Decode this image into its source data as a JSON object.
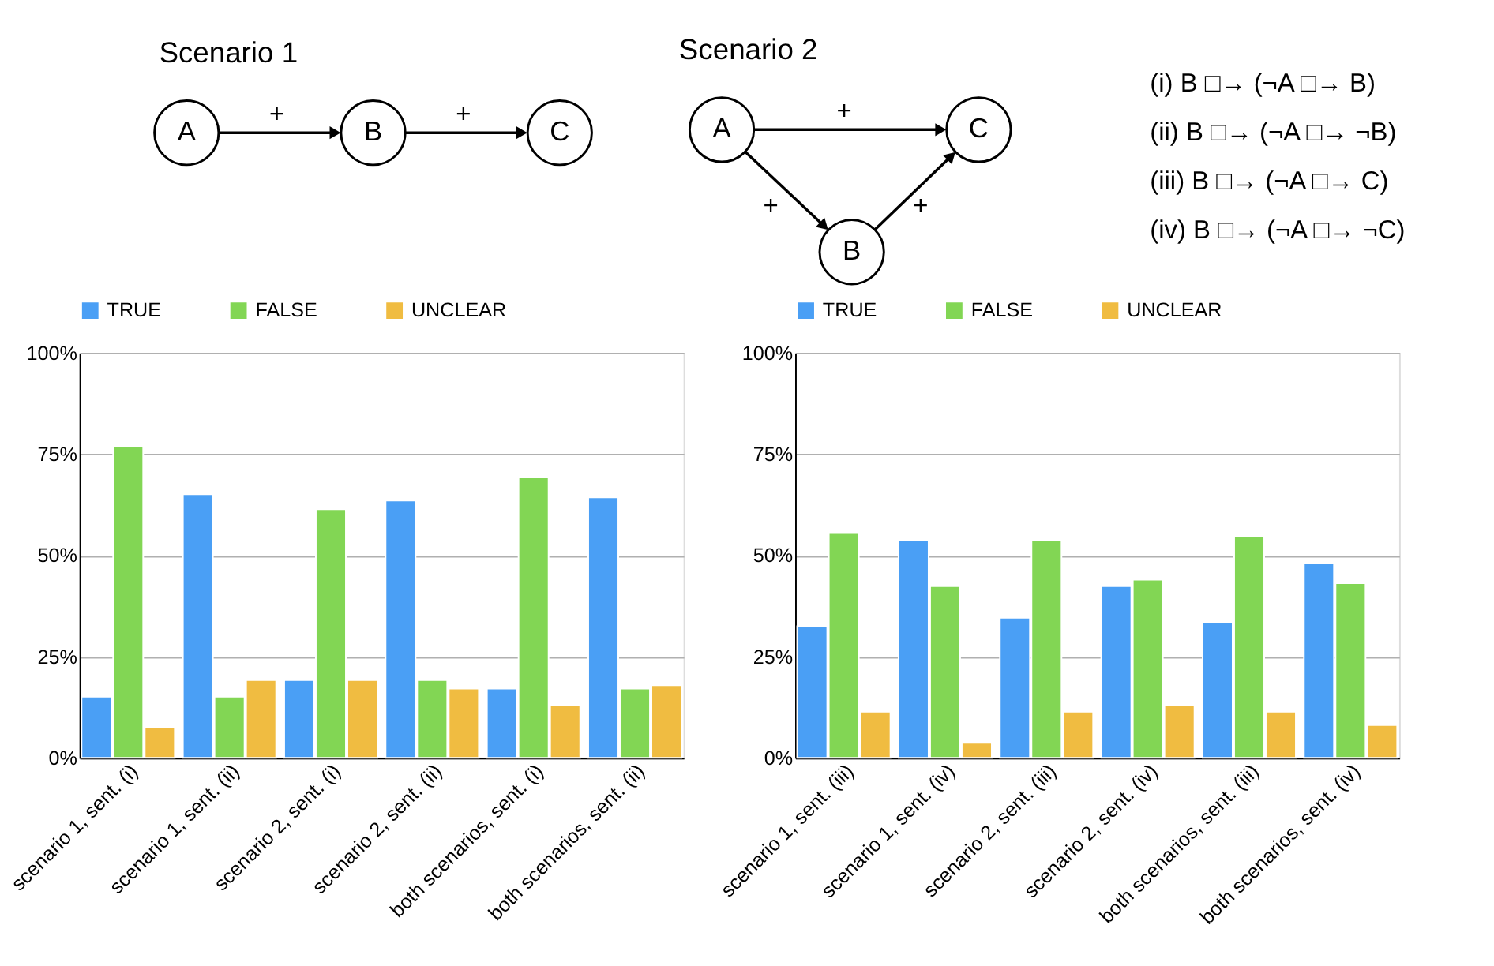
{
  "chart_data": [
    {
      "type": "other",
      "annotations": [
        "Scenario 1",
        "A",
        "B",
        "C",
        "+",
        "+",
        "Scenario 2",
        "A",
        "B",
        "C",
        "+",
        "+",
        "+",
        "(i)   B □→ (¬A □→ B)",
        "(ii)  B □→ (¬A □→ ¬B)",
        "(iii) B □→ (¬A □→ C)",
        "(iv) B □→ (¬A □→ ¬C)"
      ]
    },
    {
      "type": "bar",
      "categories": [
        "scenario 1, sent. (i)",
        "scenario 1, sent. (ii)",
        "scenario 2, sent. (i)",
        "scenario 2, sent. (ii)",
        "both scenarios, sent. (i)",
        "both scenarios, sent. (ii)"
      ],
      "series": [
        {
          "name": "TRUE",
          "color": "#4a9ff5",
          "values": [
            15.1,
            65.1,
            19.2,
            63.5,
            17.1,
            64.3
          ]
        },
        {
          "name": "FALSE",
          "color": "#82d654",
          "values": [
            76.9,
            15.1,
            61.4,
            19.2,
            69.2,
            17.1
          ]
        },
        {
          "name": "UNCLEAR",
          "color": "#f0bc41",
          "values": [
            7.5,
            19.2,
            19.2,
            17.1,
            13.1,
            17.9
          ]
        }
      ],
      "ylim": [
        0,
        100
      ],
      "yticks": [
        {
          "value": 0,
          "label": "0%"
        },
        {
          "value": 25,
          "label": "25%"
        },
        {
          "value": 50,
          "label": "50%"
        },
        {
          "value": 75,
          "label": "75%"
        },
        {
          "value": 100,
          "label": "100%"
        }
      ],
      "grid": "y",
      "legend": "top"
    },
    {
      "type": "bar",
      "categories": [
        "scenario 1, sent. (iii)",
        "scenario 1, sent. (iv)",
        "scenario 2, sent. (iii)",
        "scenario 2, sent. (iv)",
        "both scenarios, sent. (iii)",
        "both scenarios, sent. (iv)"
      ],
      "series": [
        {
          "name": "TRUE",
          "color": "#4a9ff5",
          "values": [
            32.5,
            53.8,
            34.6,
            42.4,
            33.5,
            48.1
          ]
        },
        {
          "name": "FALSE",
          "color": "#82d654",
          "values": [
            55.7,
            42.4,
            53.8,
            44.0,
            54.6,
            43.1
          ]
        },
        {
          "name": "UNCLEAR",
          "color": "#f0bc41",
          "values": [
            11.4,
            3.7,
            11.4,
            13.1,
            11.4,
            8.1
          ]
        }
      ],
      "ylim": [
        0,
        100
      ],
      "yticks": [
        {
          "value": 0,
          "label": "0%"
        },
        {
          "value": 25,
          "label": "25%"
        },
        {
          "value": 50,
          "label": "50%"
        },
        {
          "value": 75,
          "label": "75%"
        },
        {
          "value": 100,
          "label": "100%"
        }
      ],
      "grid": "y",
      "legend": "top"
    }
  ]
}
